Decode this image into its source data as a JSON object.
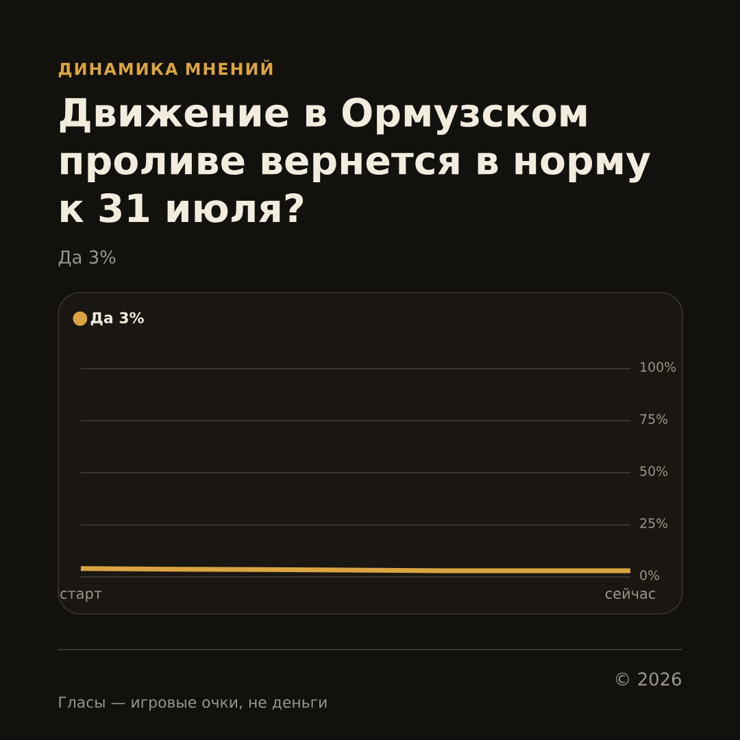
{
  "chart_data": {
    "type": "step",
    "title": "Движение в Ормузском проливе вернется в норму к 31 июля?",
    "subtitle": "Да 3%",
    "annotations": [
      "ДИНАМИКА МНЕНИЙ",
      "© 2026",
      "Гласы — игровые очки, не деньги"
    ],
    "categories": [
      "старт",
      null,
      null,
      "сейчас"
    ],
    "series": [
      {
        "name": "Да 3%",
        "color": "#d9a441",
        "values": [
          4,
          3.5,
          3,
          3
        ]
      }
    ],
    "ylim": [
      0,
      100
    ],
    "yticks": [
      {
        "value": 0,
        "label": "0%"
      },
      {
        "value": 25,
        "label": "25%"
      },
      {
        "value": 50,
        "label": "50%"
      },
      {
        "value": 75,
        "label": "75%"
      },
      {
        "value": 100,
        "label": "100%"
      }
    ],
    "grid": "y",
    "legend": "top left",
    "line_style": "solid"
  }
}
